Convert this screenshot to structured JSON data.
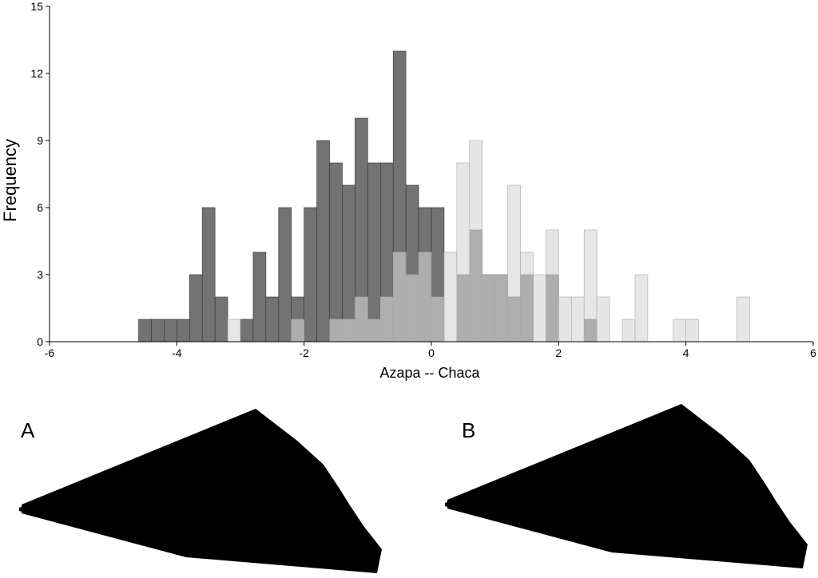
{
  "chart_data": {
    "type": "histogram",
    "xlabel": "Azapa -- Chaca",
    "ylabel": "Frequency",
    "bins": [
      -4.6,
      -4.4,
      -4.2,
      -4.0,
      -3.8,
      -3.6,
      -3.4,
      -3.2,
      -3.0,
      -2.8,
      -2.6,
      -2.4,
      -2.2,
      -2.0,
      -1.8,
      -1.6,
      -1.4,
      -1.2,
      -1.0,
      -0.8,
      -0.6,
      -0.4,
      -0.2,
      0.0,
      0.2,
      0.4,
      0.6,
      0.8,
      1.0,
      1.2,
      1.4,
      1.6,
      1.8,
      2.0,
      2.2,
      2.4,
      2.6,
      2.8,
      3.0,
      3.2,
      3.4,
      3.6,
      3.8,
      4.0,
      4.2,
      4.4,
      4.6,
      4.8,
      5.0
    ],
    "series": [
      {
        "color": "#737373",
        "values": [
          1,
          1,
          1,
          1,
          3,
          6,
          2,
          0,
          1,
          4,
          2,
          6,
          2,
          6,
          9,
          8,
          7,
          10,
          8,
          8,
          13,
          7,
          6,
          6,
          0,
          3,
          5,
          3,
          3,
          2,
          3,
          0,
          3,
          0,
          0,
          1,
          0,
          0,
          0,
          0,
          0,
          0,
          0,
          0,
          0,
          0,
          0,
          0
        ]
      },
      {
        "color": "#d6d6d6",
        "values": [
          0,
          0,
          0,
          0,
          0,
          0,
          0,
          1,
          0,
          0,
          0,
          0,
          1,
          0,
          0,
          1,
          1,
          2,
          1,
          2,
          4,
          3,
          4,
          2,
          4,
          8,
          9,
          3,
          3,
          7,
          4,
          3,
          5,
          2,
          2,
          5,
          2,
          0,
          1,
          3,
          0,
          0,
          1,
          1,
          0,
          0,
          0,
          2
        ]
      }
    ],
    "xlim": [
      -6,
      6
    ],
    "xticks": [
      -6,
      -4,
      -2,
      0,
      2,
      4,
      6
    ],
    "ylim": [
      0,
      15
    ],
    "yticks": [
      0,
      3,
      6,
      9,
      12,
      15
    ]
  },
  "diagram": {
    "panels": [
      {
        "label": "A"
      },
      {
        "label": "B"
      }
    ]
  }
}
